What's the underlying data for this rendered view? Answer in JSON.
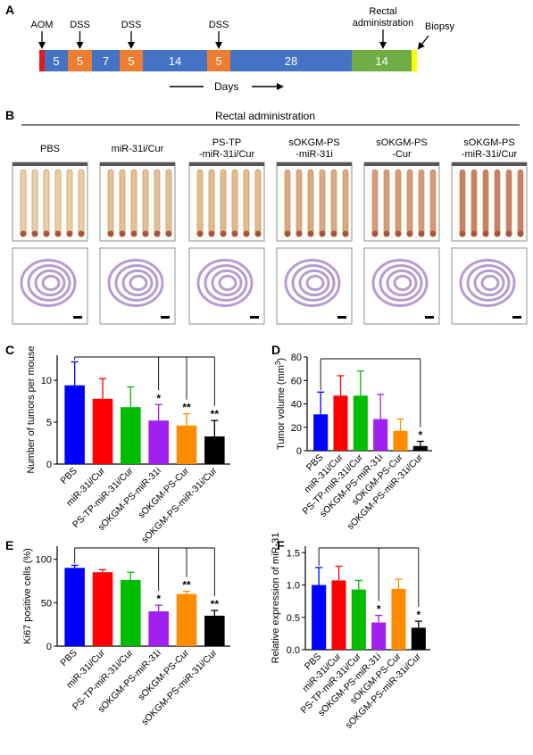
{
  "panel_a": {
    "letter": "A",
    "markers": [
      {
        "label": "AOM",
        "seg": 0
      },
      {
        "label": "DSS",
        "seg": 2
      },
      {
        "label": "DSS",
        "seg": 4
      },
      {
        "label": "DSS",
        "seg": 6
      },
      {
        "label": "Rectal administration",
        "seg": 8
      }
    ],
    "segments": [
      {
        "text": "",
        "color": "#e31a1c"
      },
      {
        "text": "5",
        "color": "#4472c4"
      },
      {
        "text": "5",
        "color": "#ed7d31"
      },
      {
        "text": "7",
        "color": "#4472c4"
      },
      {
        "text": "5",
        "color": "#ed7d31"
      },
      {
        "text": "14",
        "color": "#4472c4"
      },
      {
        "text": "5",
        "color": "#ed7d31"
      },
      {
        "text": "28",
        "color": "#4472c4"
      },
      {
        "text": "14",
        "color": "#70ad47"
      },
      {
        "text": "",
        "color": "#ffff00"
      }
    ],
    "biopsy_label": "Biopsy",
    "days_label": "Days"
  },
  "panel_b": {
    "letter": "B",
    "header": "Rectal administration",
    "groups": [
      {
        "line1": "PBS",
        "line2": ""
      },
      {
        "line1": "miR-31i/Cur",
        "line2": ""
      },
      {
        "line1": "PS-TP",
        "line2": "-miR-31i/Cur"
      },
      {
        "line1": "sOKGM-PS",
        "line2": "-miR-31i"
      },
      {
        "line1": "sOKGM-PS",
        "line2": "-Cur"
      },
      {
        "line1": "sOKGM-PS",
        "line2": "-miR-31i/Cur"
      }
    ],
    "colon_tint": [
      "#e8cfa6",
      "#e2c196",
      "#e0bc8e",
      "#d9a986",
      "#d49a7a",
      "#c88068"
    ]
  },
  "colors": {
    "PBS": "#0000ff",
    "miR31iCur": "#ff0000",
    "PSTP": "#00bb00",
    "sOKGM_miR31i": "#a020f0",
    "sOKGM_Cur": "#ff8c00",
    "sOKGM_miR31iCur": "#000000"
  },
  "chart_data": [
    {
      "panel": "C",
      "type": "bar",
      "ylabel": "Number of tumors per mouse",
      "ylim": [
        0,
        13
      ],
      "yticks": [
        "0",
        "5",
        "10"
      ],
      "categories": [
        "PBS",
        "miR-31i/Cur",
        "PS-TP-miR-31i/Cur",
        "sOKGM-PS-miR-31i",
        "sOKGM-PS-Cur",
        "sOKGM-PS-miR-31i/Cur"
      ],
      "values": [
        9.4,
        7.8,
        6.8,
        5.2,
        4.6,
        3.3
      ],
      "errors": [
        2.8,
        2.4,
        2.4,
        1.9,
        1.4,
        1.9
      ],
      "significance": [
        "",
        "",
        "",
        "*",
        "**",
        "**"
      ],
      "brackets_to": [
        3,
        4,
        5
      ]
    },
    {
      "panel": "D",
      "type": "bar",
      "ylabel": "Tumor volume (mm",
      "ylabel_sup": "3",
      "ylabel_end": ")",
      "ylim": [
        0,
        80
      ],
      "yticks": [
        "0",
        "20",
        "40",
        "60",
        "80"
      ],
      "categories": [
        "PBS",
        "miR-31i/Cur",
        "PS-TP-miR-31i/Cur",
        "sOKGM-PS-miR-31i",
        "sOKGM-PS-Cur",
        "sOKGM-PS-miR-31i/Cur"
      ],
      "values": [
        31,
        47,
        47,
        27,
        17,
        4
      ],
      "errors": [
        19,
        17,
        21,
        21,
        10,
        4
      ],
      "significance": [
        "",
        "",
        "",
        "",
        "",
        "*"
      ],
      "brackets_to": [
        5
      ]
    },
    {
      "panel": "E",
      "type": "bar",
      "ylabel": "Ki67 positive cells (%)",
      "ylim": [
        0,
        115
      ],
      "yticks": [
        "0",
        "50",
        "100"
      ],
      "categories": [
        "PBS",
        "miR-31i/Cur",
        "PS-TP-miR-31i/Cur",
        "sOKGM-PS-miR-31i",
        "sOKGM-PS-Cur",
        "sOKGM-PS-miR-31i/Cur"
      ],
      "values": [
        90,
        85,
        76,
        40,
        60,
        35
      ],
      "errors": [
        3,
        3,
        9,
        7,
        3,
        6
      ],
      "significance": [
        "",
        "",
        "",
        "*",
        "**",
        "**"
      ],
      "brackets_to": [
        3,
        4,
        5
      ]
    },
    {
      "panel": "F",
      "type": "bar",
      "ylabel": "Relative expression of miR-31",
      "ylim": [
        0,
        1.6
      ],
      "yticks": [
        "0.0",
        "0.5",
        "1.0",
        "1.5"
      ],
      "categories": [
        "PBS",
        "miR-31i/Cur",
        "PS-TP-miR-31i/Cur",
        "sOKGM-PS-miR-31i",
        "sOKGM-PS-Cur",
        "sOKGM-PS-miR-31i/Cur"
      ],
      "values": [
        1.0,
        1.07,
        0.93,
        0.42,
        0.94,
        0.34
      ],
      "errors": [
        0.27,
        0.22,
        0.14,
        0.11,
        0.15,
        0.1
      ],
      "significance": [
        "",
        "",
        "",
        "*",
        "",
        "*"
      ],
      "brackets_to": [
        3,
        5
      ]
    }
  ]
}
